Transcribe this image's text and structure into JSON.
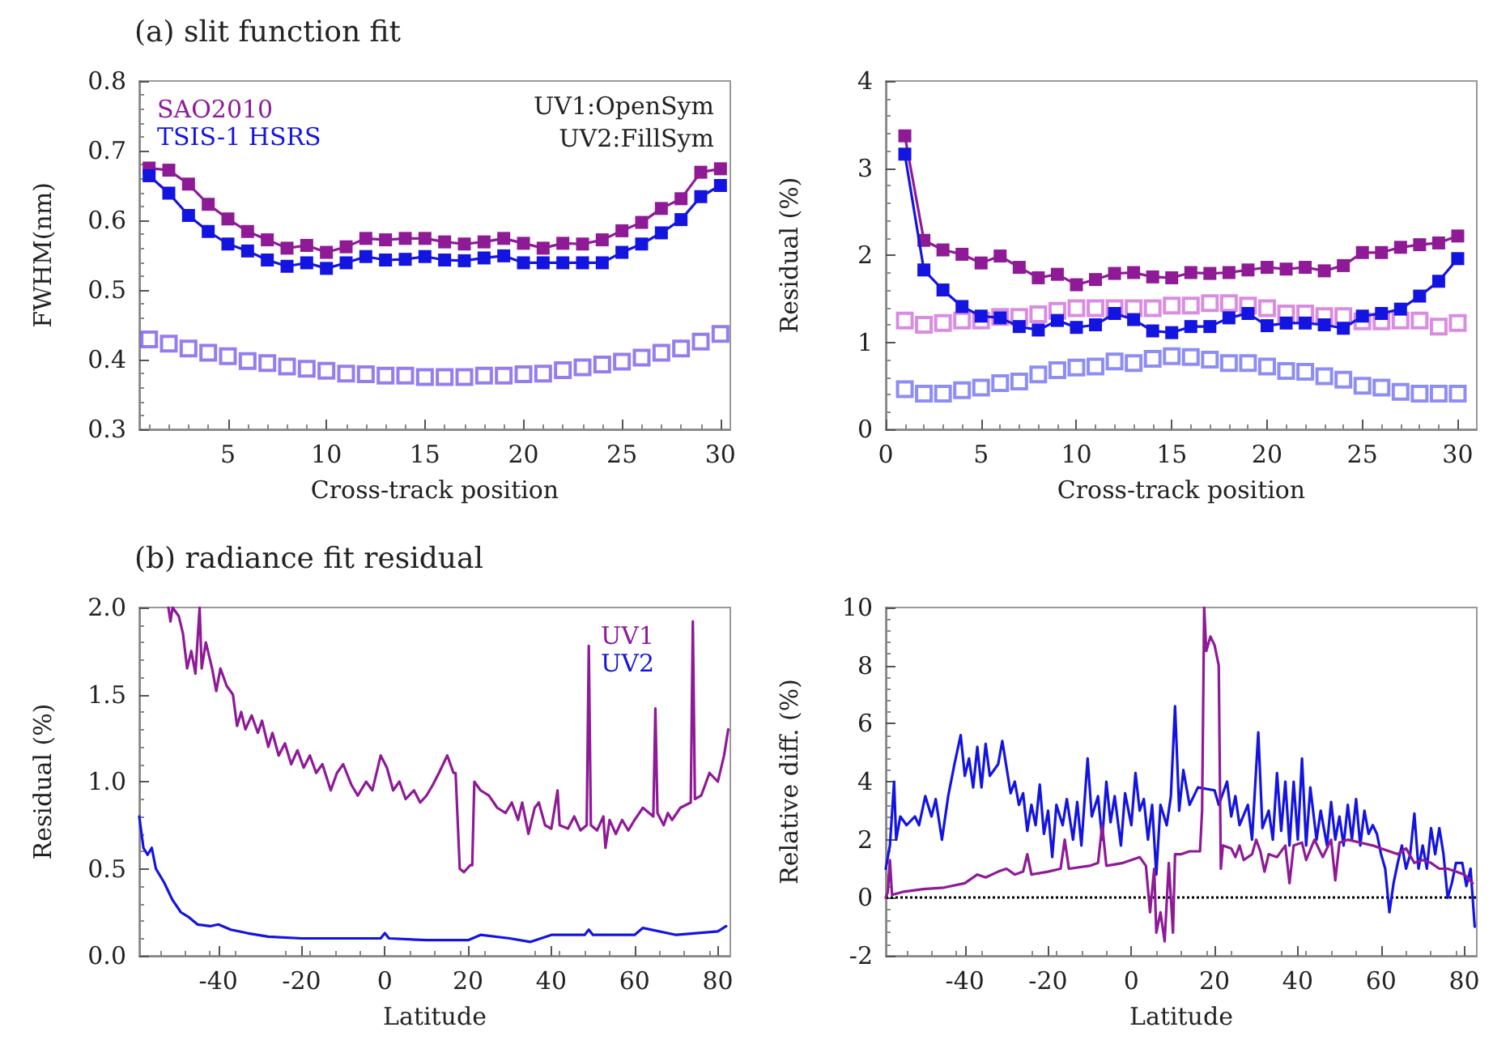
{
  "chart_data": [
    {
      "type": "line",
      "title": "(a) slit function fit",
      "xlabel": "Cross-track position",
      "ylabel": "FWHM(nm)",
      "x": [
        1,
        2,
        3,
        4,
        5,
        6,
        7,
        8,
        9,
        10,
        11,
        12,
        13,
        14,
        15,
        16,
        17,
        18,
        19,
        20,
        21,
        22,
        23,
        24,
        25,
        26,
        27,
        28,
        29,
        30
      ],
      "xlim": [
        0.5,
        30.5
      ],
      "xticks": [
        5,
        10,
        15,
        20,
        25,
        30
      ],
      "ylim": [
        0.3,
        0.8
      ],
      "yticks": [
        0.3,
        0.4,
        0.5,
        0.6,
        0.7,
        0.8
      ],
      "marker": "square",
      "legend": "top left",
      "annotations": [
        "UV1:OpenSym",
        "UV2:FillSym"
      ],
      "series": [
        {
          "name": "SAO2010",
          "color": "#8e1a96",
          "values": [
            0.675,
            0.672,
            0.652,
            0.623,
            0.602,
            0.584,
            0.572,
            0.56,
            0.564,
            0.554,
            0.562,
            0.574,
            0.572,
            0.574,
            0.574,
            0.569,
            0.566,
            0.569,
            0.574,
            0.567,
            0.56,
            0.567,
            0.566,
            0.572,
            0.585,
            0.597,
            0.617,
            0.631,
            0.669,
            0.674
          ]
        },
        {
          "name": "TSIS-1 HSRS",
          "color": "#1414e0",
          "values": [
            0.664,
            0.639,
            0.607,
            0.584,
            0.566,
            0.556,
            0.543,
            0.534,
            0.539,
            0.531,
            0.539,
            0.548,
            0.543,
            0.544,
            0.548,
            0.543,
            0.542,
            0.546,
            0.549,
            0.539,
            0.539,
            0.539,
            0.539,
            0.539,
            0.554,
            0.566,
            0.582,
            0.601,
            0.634,
            0.65
          ]
        },
        {
          "type": "scatter",
          "color": "#7a5ce8",
          "values": [
            0.429,
            0.423,
            0.416,
            0.41,
            0.405,
            0.398,
            0.395,
            0.39,
            0.387,
            0.384,
            0.38,
            0.379,
            0.377,
            0.377,
            0.375,
            0.375,
            0.375,
            0.377,
            0.377,
            0.379,
            0.38,
            0.385,
            0.389,
            0.393,
            0.397,
            0.403,
            0.41,
            0.416,
            0.426,
            0.437
          ]
        }
      ]
    },
    {
      "type": "line",
      "xlabel": "Cross-track position",
      "ylabel": "Residual (%)",
      "x": [
        1,
        2,
        3,
        4,
        5,
        6,
        7,
        8,
        9,
        10,
        11,
        12,
        13,
        14,
        15,
        16,
        17,
        18,
        19,
        20,
        21,
        22,
        23,
        24,
        25,
        26,
        27,
        28,
        29,
        30
      ],
      "xlim": [
        0,
        31
      ],
      "xticks": [
        0,
        5,
        10,
        15,
        20,
        25,
        30
      ],
      "ylim": [
        0,
        4
      ],
      "yticks": [
        0,
        1,
        2,
        3,
        4
      ],
      "marker": "square",
      "series": [
        {
          "color": "#8e1a96",
          "values": [
            3.37,
            2.17,
            2.06,
            2.01,
            1.91,
            1.99,
            1.86,
            1.74,
            1.78,
            1.66,
            1.72,
            1.79,
            1.8,
            1.75,
            1.74,
            1.8,
            1.79,
            1.8,
            1.83,
            1.86,
            1.84,
            1.86,
            1.82,
            1.88,
            2.03,
            2.03,
            2.09,
            2.12,
            2.14,
            2.22
          ]
        },
        {
          "color": "#1414e0",
          "values": [
            3.16,
            1.83,
            1.6,
            1.41,
            1.3,
            1.28,
            1.18,
            1.14,
            1.25,
            1.17,
            1.2,
            1.33,
            1.26,
            1.13,
            1.11,
            1.18,
            1.18,
            1.28,
            1.33,
            1.19,
            1.22,
            1.22,
            1.2,
            1.16,
            1.3,
            1.33,
            1.38,
            1.53,
            1.7,
            1.96
          ]
        },
        {
          "type": "scatter",
          "color": "#d070d8",
          "values": [
            1.25,
            1.2,
            1.22,
            1.25,
            1.25,
            1.29,
            1.29,
            1.32,
            1.36,
            1.39,
            1.39,
            1.39,
            1.39,
            1.39,
            1.42,
            1.42,
            1.45,
            1.45,
            1.42,
            1.39,
            1.33,
            1.33,
            1.3,
            1.3,
            1.24,
            1.24,
            1.25,
            1.25,
            1.18,
            1.22
          ]
        },
        {
          "type": "scatter",
          "color": "#7070f0",
          "values": [
            0.46,
            0.41,
            0.41,
            0.45,
            0.48,
            0.53,
            0.55,
            0.63,
            0.68,
            0.71,
            0.72,
            0.78,
            0.76,
            0.81,
            0.84,
            0.83,
            0.8,
            0.76,
            0.76,
            0.72,
            0.67,
            0.66,
            0.61,
            0.57,
            0.5,
            0.48,
            0.43,
            0.41,
            0.41,
            0.41
          ]
        }
      ]
    },
    {
      "type": "line",
      "title": "(b) radiance fit residual",
      "xlabel": "Latitude",
      "ylabel": "Residual (%)",
      "xlim": [
        -59,
        83
      ],
      "xticks": [
        -40,
        -20,
        0,
        20,
        40,
        60,
        80
      ],
      "ylim": [
        0,
        2
      ],
      "yticks": [
        {
          "value": 0,
          "label": "0.0"
        },
        0.5,
        {
          "value": 1,
          "label": "1.0"
        },
        1.5,
        {
          "value": 2,
          "label": "2.0"
        }
      ],
      "marker": "none",
      "legend": "top right",
      "series": [
        {
          "name": "UV1",
          "color": "#8e1a96",
          "x": [
            -52,
            -51.5,
            -51,
            -49.5,
            -48.5,
            -47.5,
            -46.5,
            -45.5,
            -44.5,
            -44,
            -43,
            -41.5,
            -40.5,
            -39.5,
            -38,
            -36.5,
            -35.5,
            -34.5,
            -33.5,
            -32,
            -30.5,
            -29.5,
            -28,
            -27,
            -25.5,
            -24,
            -22.5,
            -21,
            -19.5,
            -18,
            -16.5,
            -15,
            -13,
            -11.5,
            -10,
            -8,
            -6.5,
            -4.5,
            -3,
            -1,
            0.5,
            2,
            3.5,
            5,
            7,
            8.5,
            10,
            11.5,
            13,
            15,
            16.5,
            17,
            18,
            19,
            20.5,
            21,
            21.5,
            23,
            25,
            27,
            29,
            30.5,
            32,
            33,
            34.5,
            36,
            37,
            38.5,
            40,
            41.5,
            42,
            44,
            45.5,
            47,
            48.5,
            49,
            49.5,
            51,
            52.5,
            53,
            54,
            55.5,
            57,
            58.5,
            60,
            62,
            64.5,
            65,
            65.5,
            67,
            68,
            69,
            71,
            73.5,
            74,
            74.5,
            76,
            78,
            80,
            81.5,
            82.5
          ],
          "values": [
            2.0,
            1.92,
            2.0,
            1.95,
            1.85,
            1.65,
            1.75,
            1.62,
            2.0,
            1.65,
            1.8,
            1.65,
            1.52,
            1.65,
            1.55,
            1.5,
            1.32,
            1.4,
            1.3,
            1.38,
            1.28,
            1.35,
            1.2,
            1.28,
            1.15,
            1.22,
            1.1,
            1.18,
            1.08,
            1.15,
            1.05,
            1.1,
            0.95,
            1.05,
            1.1,
            0.98,
            0.92,
            1.0,
            0.95,
            1.15,
            1.08,
            0.95,
            1.0,
            0.9,
            0.95,
            0.88,
            0.92,
            0.98,
            1.05,
            1.15,
            1.05,
            1.05,
            0.5,
            0.48,
            0.52,
            0.52,
            1.0,
            0.95,
            0.92,
            0.85,
            0.82,
            0.88,
            0.78,
            0.88,
            0.7,
            0.85,
            0.88,
            0.75,
            0.73,
            0.95,
            0.75,
            0.73,
            0.8,
            0.72,
            0.75,
            1.78,
            0.75,
            0.72,
            0.8,
            0.62,
            0.78,
            0.7,
            0.78,
            0.72,
            0.78,
            0.85,
            0.8,
            1.42,
            0.82,
            0.75,
            0.82,
            0.78,
            0.85,
            0.88,
            1.92,
            0.9,
            0.92,
            1.05,
            1.0,
            1.15,
            1.3
          ]
        },
        {
          "name": "UV2",
          "color": "#1414e0",
          "x": [
            -59,
            -58,
            -57,
            -56,
            -55,
            -53,
            -51,
            -49,
            -47,
            -45,
            -42,
            -40,
            -37,
            -33,
            -28,
            -20,
            -10,
            -1,
            0,
            1,
            10,
            20,
            23,
            30,
            35,
            40,
            48,
            49,
            50,
            60,
            62,
            70,
            80,
            82
          ],
          "values": [
            0.8,
            0.62,
            0.58,
            0.62,
            0.5,
            0.42,
            0.32,
            0.25,
            0.22,
            0.18,
            0.17,
            0.18,
            0.15,
            0.13,
            0.11,
            0.1,
            0.1,
            0.1,
            0.13,
            0.1,
            0.09,
            0.09,
            0.12,
            0.1,
            0.08,
            0.12,
            0.12,
            0.15,
            0.12,
            0.12,
            0.16,
            0.12,
            0.14,
            0.17
          ]
        }
      ]
    },
    {
      "type": "line",
      "xlabel": "Latitude",
      "ylabel": "Relative diff. (%)",
      "xlim": [
        -59,
        83
      ],
      "xticks": [
        -40,
        -20,
        0,
        20,
        40,
        60,
        80
      ],
      "ylim": [
        -2,
        10
      ],
      "yticks": [
        -2,
        0,
        2,
        4,
        6,
        8,
        10
      ],
      "marker": "none",
      "ref_lines": [
        {
          "axis": "y",
          "value": 0,
          "color": "#000000",
          "line_style": "dotted"
        }
      ],
      "series": [
        {
          "color": "#1414e0",
          "x": [
            -59,
            -58,
            -57,
            -56.5,
            -55.5,
            -54,
            -52,
            -51,
            -49.5,
            -48,
            -47,
            -45.5,
            -44,
            -42.5,
            -41,
            -40,
            -39,
            -38,
            -37,
            -36,
            -35,
            -34,
            -32,
            -31,
            -30,
            -29,
            -28,
            -27,
            -26,
            -25,
            -24,
            -23,
            -22,
            -21,
            -20,
            -19,
            -18,
            -16.5,
            -15.5,
            -14,
            -13,
            -12,
            -10.5,
            -9.5,
            -8,
            -7,
            -6,
            -5,
            -4,
            -2.5,
            -1.5,
            0,
            1,
            2,
            3,
            4,
            5,
            6,
            7,
            8.5,
            9.5,
            10.5,
            11.5,
            12.5,
            14,
            16,
            20,
            21,
            23,
            24,
            25,
            26,
            28,
            29,
            30.5,
            31.5,
            33,
            34,
            35,
            36,
            37,
            38,
            39,
            40,
            41,
            42,
            43,
            44.5,
            45.5,
            47,
            48,
            49,
            50,
            51,
            52,
            53,
            54,
            55,
            56,
            57,
            58,
            59,
            60,
            61,
            62,
            63,
            64,
            65,
            66,
            67,
            68,
            69,
            70,
            71,
            72,
            73,
            74,
            75,
            76,
            77,
            78,
            79.5,
            80.5,
            81.5,
            82.5
          ],
          "values": [
            1.0,
            1.8,
            4.0,
            2.0,
            2.8,
            2.5,
            2.8,
            2.5,
            3.5,
            2.8,
            3.4,
            2.0,
            3.5,
            4.6,
            5.6,
            4.2,
            4.8,
            3.8,
            5.2,
            3.8,
            5.3,
            4.2,
            4.6,
            5.4,
            4.5,
            3.6,
            4.0,
            3.2,
            3.6,
            2.3,
            3.2,
            2.5,
            3.9,
            2.2,
            3.0,
            1.4,
            3.2,
            2.5,
            3.4,
            2.0,
            3.3,
            1.8,
            4.8,
            2.8,
            3.5,
            2.0,
            4.0,
            2.6,
            3.5,
            1.8,
            3.6,
            2.5,
            4.3,
            3.0,
            3.4,
            2.0,
            3.2,
            0.8,
            3.2,
            2.5,
            3.5,
            6.6,
            3.0,
            4.4,
            3.2,
            3.8,
            3.7,
            3.2,
            4.0,
            2.8,
            3.5,
            2.5,
            3.2,
            2.0,
            5.7,
            2.4,
            3.0,
            2.0,
            4.3,
            2.3,
            4.0,
            1.8,
            4.0,
            2.0,
            4.8,
            1.8,
            3.8,
            2.0,
            3.0,
            1.8,
            3.3,
            2.0,
            2.8,
            1.8,
            3.2,
            2.0,
            3.4,
            1.8,
            3.0,
            2.2,
            2.5,
            2.2,
            1.5,
            1.0,
            -0.5,
            0.5,
            1.2,
            1.8,
            1.0,
            1.5,
            2.9,
            1.0,
            1.8,
            1.0,
            2.4,
            1.5,
            2.4,
            1.5,
            0.0,
            0.5,
            1.2,
            1.2,
            0.4,
            1.0,
            -1.0
          ]
        },
        {
          "color": "#8e1a96",
          "x": [
            -59,
            -58.5,
            -58,
            -57.5,
            -55,
            -50,
            -45,
            -40,
            -37,
            -35,
            -32,
            -30,
            -28,
            -26,
            -25,
            -24,
            -20,
            -17,
            -16,
            -15,
            -10,
            -8,
            -7,
            -6,
            -2,
            0,
            2,
            3.5,
            4.5,
            5.5,
            6,
            7,
            8,
            9,
            10,
            10.5,
            12,
            14,
            16.5,
            17,
            17.5,
            18,
            19,
            20,
            21,
            21.5,
            22,
            24,
            25,
            26,
            27,
            29,
            30,
            31,
            32,
            33,
            35,
            37,
            38,
            39,
            41,
            42,
            44,
            46,
            48,
            49,
            50,
            52,
            55,
            58,
            60,
            62,
            64,
            66,
            68,
            70,
            72,
            74,
            76,
            78,
            80,
            82
          ],
          "values": [
            0.0,
            0.2,
            1.3,
            0.1,
            0.2,
            0.3,
            0.35,
            0.5,
            0.8,
            0.7,
            0.9,
            1.0,
            0.8,
            0.9,
            1.5,
            0.8,
            0.9,
            1.0,
            2.0,
            1.0,
            1.1,
            1.2,
            2.5,
            1.1,
            1.2,
            1.3,
            1.4,
            1.1,
            -0.5,
            1.0,
            -1.2,
            -0.5,
            -1.5,
            1.2,
            -1.2,
            1.5,
            1.5,
            1.6,
            1.6,
            3.0,
            10.0,
            8.5,
            9.0,
            8.7,
            8.0,
            1.0,
            1.8,
            1.7,
            1.4,
            1.8,
            1.3,
            1.5,
            2.0,
            1.6,
            0.9,
            1.5,
            1.4,
            1.8,
            0.5,
            1.8,
            1.9,
            1.3,
            2.0,
            1.4,
            2.0,
            0.6,
            1.9,
            2.0,
            1.9,
            1.8,
            1.7,
            1.6,
            1.5,
            1.7,
            1.2,
            1.3,
            1.2,
            1.0,
            1.0,
            0.9,
            0.8,
            0.5
          ]
        }
      ]
    }
  ]
}
